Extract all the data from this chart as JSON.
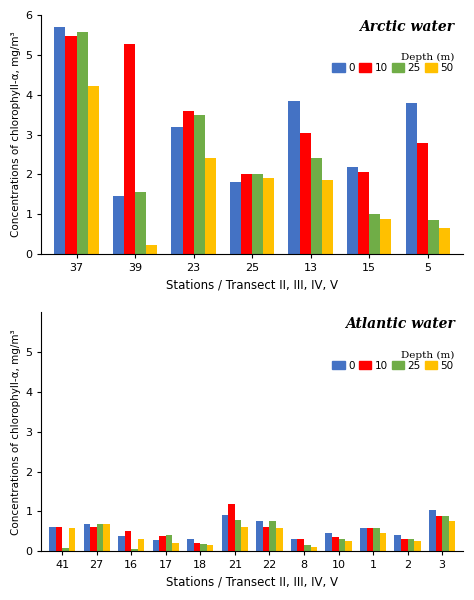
{
  "arctic": {
    "stations": [
      "37",
      "39",
      "23",
      "25",
      "13",
      "15",
      "5"
    ],
    "depth0": [
      5.7,
      1.45,
      3.2,
      1.82,
      3.85,
      2.18,
      3.8
    ],
    "depth10": [
      5.48,
      5.27,
      3.6,
      2.0,
      3.05,
      2.05,
      2.8
    ],
    "depth25": [
      5.58,
      1.55,
      3.48,
      2.0,
      2.4,
      1.0,
      0.85
    ],
    "depth50": [
      4.23,
      0.22,
      2.42,
      1.9,
      1.85,
      0.88,
      0.65
    ],
    "title": "Arctic water",
    "ylabel": "Concentrations of chlorophyll-α, mg/m³",
    "xlabel": "Stations / Transect II, III, IV, V",
    "ylim": [
      0,
      6
    ],
    "yticks": [
      0,
      1,
      2,
      3,
      4,
      5,
      6
    ]
  },
  "atlantic": {
    "stations": [
      "41",
      "27",
      "16",
      "17",
      "18",
      "21",
      "22",
      "8",
      "10",
      "1",
      "2",
      "3"
    ],
    "depth0": [
      0.6,
      0.68,
      0.38,
      0.28,
      0.3,
      0.9,
      0.76,
      0.3,
      0.45,
      0.58,
      0.4,
      1.04
    ],
    "depth10": [
      0.62,
      0.62,
      0.52,
      0.38,
      0.22,
      1.18,
      0.6,
      0.3,
      0.35,
      0.58,
      0.32,
      0.88
    ],
    "depth25": [
      0.08,
      0.68,
      0.05,
      0.42,
      0.18,
      0.78,
      0.76,
      0.15,
      0.32,
      0.58,
      0.3,
      0.88
    ],
    "depth50": [
      0.58,
      0.68,
      0.3,
      0.2,
      0.15,
      0.62,
      0.58,
      0.12,
      0.25,
      0.45,
      0.25,
      0.75
    ],
    "title": "Atlantic water",
    "ylabel": "Concentrations of chlorophyll-α, mg/m³",
    "xlabel": "Stations / Transect II, III, IV, V",
    "ylim": [
      0,
      6
    ],
    "yticks": [
      0,
      1,
      2,
      3,
      4,
      5
    ]
  },
  "colors": {
    "depth0": "#4472C4",
    "depth10": "#FF0000",
    "depth25": "#70AD47",
    "depth50": "#FFC000"
  },
  "depth_label": "Depth (m)",
  "legend_labels": [
    "0",
    "10",
    "25",
    "50"
  ],
  "bar_width": 0.19,
  "figsize": [
    4.74,
    6.0
  ],
  "dpi": 100
}
